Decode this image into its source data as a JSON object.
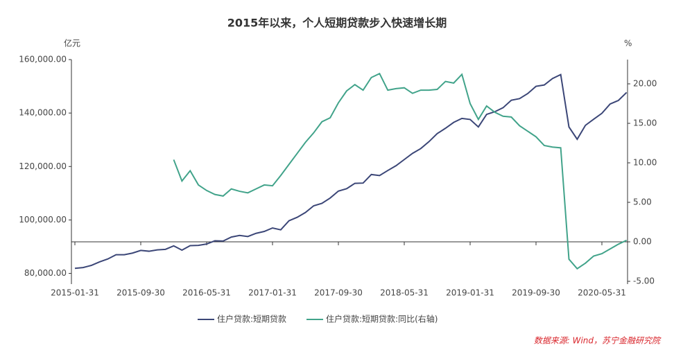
{
  "chart_data": {
    "type": "line",
    "title": "2015年以来，个人短期贷款步入快速增长期",
    "y_unit": "亿元",
    "y2_unit": "%",
    "source": "数据来源: Wind，苏宁金融研究院",
    "categories": [
      "2015-01-31",
      null,
      null,
      null,
      null,
      null,
      null,
      null,
      "2015-09-30",
      null,
      null,
      null,
      null,
      null,
      null,
      null,
      "2016-05-31",
      null,
      null,
      null,
      null,
      null,
      null,
      null,
      "2017-01-31",
      null,
      null,
      null,
      null,
      null,
      null,
      null,
      "2017-09-30",
      null,
      null,
      null,
      null,
      null,
      null,
      null,
      "2018-05-31",
      null,
      null,
      null,
      null,
      null,
      null,
      null,
      "2019-01-31",
      null,
      null,
      null,
      null,
      null,
      null,
      null,
      "2019-09-30",
      null,
      null,
      null,
      null,
      null,
      null,
      null,
      "2020-05-31",
      null,
      null,
      null
    ],
    "ylim": [
      76000,
      160000
    ],
    "yticks": [
      {
        "value": 80000,
        "label": "80,000.00"
      },
      {
        "value": 100000,
        "label": "100,000.00"
      },
      {
        "value": 120000,
        "label": "120,000.00"
      },
      {
        "value": 140000,
        "label": "140,000.00"
      },
      {
        "value": 160000,
        "label": "160,000.00"
      }
    ],
    "y2lim": [
      -5.35,
      23.07
    ],
    "y2ticks": [
      {
        "value": -5,
        "label": "-5.00"
      },
      {
        "value": 0,
        "label": "0.00"
      },
      {
        "value": 5,
        "label": "5.00"
      },
      {
        "value": 10,
        "label": "10.00"
      },
      {
        "value": 15,
        "label": "15.00"
      },
      {
        "value": 20,
        "label": "20.00"
      }
    ],
    "legend": "bottom",
    "series": [
      {
        "name": "住户贷款:短期贷款",
        "color": "#3b4677",
        "values": [
          81900,
          82200,
          83000,
          84300,
          85400,
          87000,
          87000,
          87600,
          88600,
          88300,
          88800,
          89000,
          90300,
          88700,
          90400,
          90500,
          91000,
          92200,
          92100,
          93600,
          94200,
          93800,
          95000,
          95700,
          97000,
          96300,
          99700,
          101000,
          102800,
          105300,
          106200,
          108200,
          110800,
          111700,
          113700,
          113800,
          117000,
          116600,
          118500,
          120300,
          122600,
          124900,
          126700,
          129300,
          132300,
          134300,
          136500,
          138000,
          137600,
          134800,
          139500,
          140500,
          142000,
          144800,
          145400,
          147300,
          150000,
          150500,
          152900,
          154400,
          134800,
          130200,
          135400,
          137700,
          139900,
          143400,
          144700,
          147700
        ]
      },
      {
        "name": "住户贷款:短期贷款:同比(右轴)",
        "color": "#41a38a",
        "axis": "y2",
        "values": [
          null,
          null,
          null,
          null,
          null,
          null,
          null,
          null,
          null,
          null,
          null,
          null,
          10.4,
          7.7,
          9.0,
          7.2,
          6.5,
          6.0,
          5.8,
          6.7,
          6.4,
          6.2,
          6.7,
          7.2,
          7.1,
          8.4,
          9.8,
          11.2,
          12.6,
          13.8,
          15.2,
          15.7,
          17.6,
          19.1,
          19.9,
          19.2,
          20.8,
          21.3,
          19.2,
          19.4,
          19.5,
          18.8,
          19.2,
          19.2,
          19.3,
          20.3,
          20.1,
          21.2,
          17.5,
          15.5,
          17.2,
          16.4,
          15.9,
          15.8,
          14.7,
          14.0,
          13.3,
          12.2,
          12.0,
          11.9,
          -2.2,
          -3.4,
          -2.7,
          -1.8,
          -1.5,
          -0.9,
          -0.3,
          0.2
        ]
      }
    ]
  }
}
